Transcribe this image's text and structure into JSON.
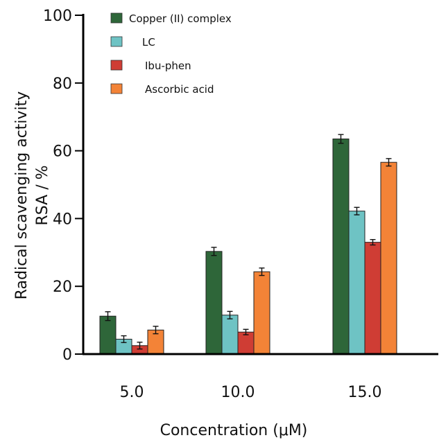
{
  "chart_data": {
    "type": "bar",
    "categories": [
      "5.0",
      "10.0",
      "15.0"
    ],
    "series": [
      {
        "name": "Copper (II) complex",
        "color": "#2e6639",
        "values": [
          11.2,
          30.3,
          63.5
        ],
        "errors": [
          1.3,
          1.2,
          1.3
        ]
      },
      {
        "name": "LC",
        "color": "#6ec3c4",
        "values": [
          4.4,
          11.5,
          42.2
        ],
        "errors": [
          1.0,
          1.1,
          1.1
        ]
      },
      {
        "name": "Ibu-phen",
        "color": "#cf3d34",
        "values": [
          2.5,
          6.5,
          33.0
        ],
        "errors": [
          1.0,
          0.8,
          0.8
        ]
      },
      {
        "name": "Ascorbic acid",
        "color": "#f38337",
        "values": [
          7.1,
          24.3,
          56.6
        ],
        "errors": [
          1.1,
          1.1,
          1.1
        ]
      }
    ],
    "ylim": [
      0,
      100
    ],
    "yticks": [
      "0",
      "20",
      "40",
      "60",
      "80",
      "100"
    ],
    "ylabel_line1": "Radical scavenging activity",
    "ylabel_line2": "RSA / %",
    "xlabel": "Concentration (μM)",
    "legend_position": "top-left",
    "grid": false
  }
}
